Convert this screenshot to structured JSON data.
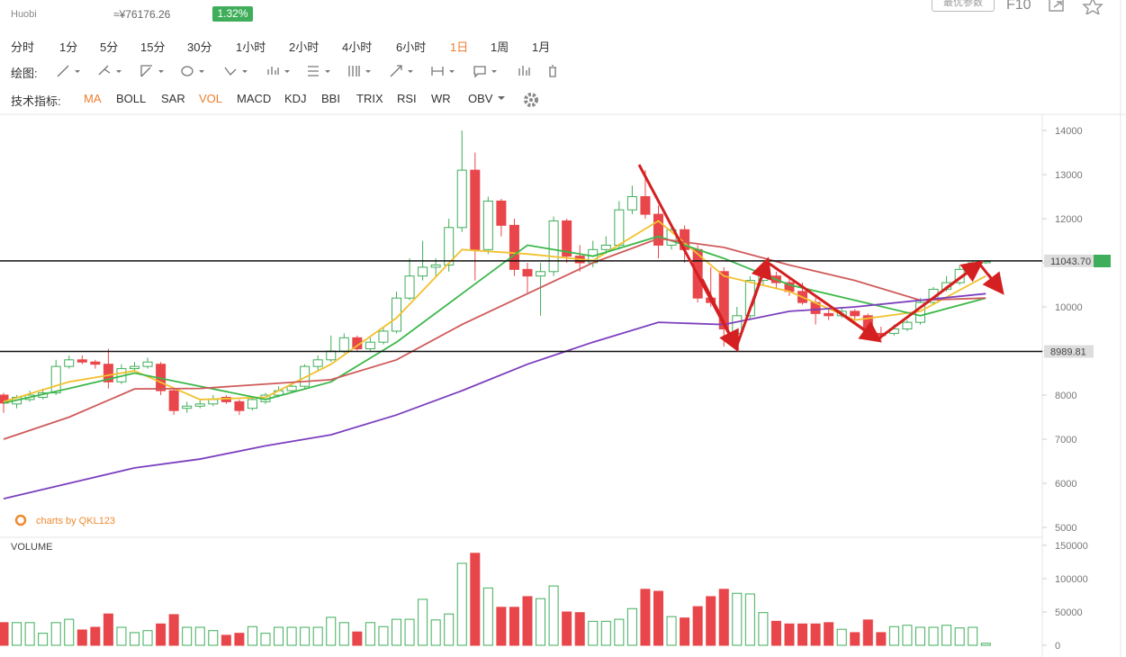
{
  "header": {
    "exchange": "Huobi",
    "cny_price": "≈¥76176.26",
    "change": "1.32%",
    "buttons": [
      "最优参数",
      "F10"
    ]
  },
  "toolbar": {
    "timeframes": [
      "分时",
      "1分",
      "5分",
      "15分",
      "30分",
      "1小时",
      "2小时",
      "4小时",
      "6小时",
      "1日",
      "1周",
      "1月"
    ],
    "active_timeframe": 9,
    "drawing_label": "绘图:",
    "indicators_label": "技术指标:",
    "indicators": [
      "MA",
      "BOLL",
      "SAR",
      "VOL",
      "MACD",
      "KDJ",
      "BBI",
      "TRIX",
      "RSI",
      "WR",
      "OBV"
    ],
    "active_indicators": [
      0,
      3
    ]
  },
  "chart_data": {
    "type": "candlestick",
    "watermark": "charts by QKL123",
    "up_color": "#3fae5a",
    "down_color": "#e8464a",
    "open": [
      8000,
      7800,
      7900,
      7950,
      8050,
      8650,
      8800,
      8750,
      8700,
      8300,
      8600,
      8650,
      8700,
      8100,
      7700,
      7750,
      7800,
      7950,
      7850,
      7700,
      7850,
      8000,
      8100,
      8200,
      8650,
      8800,
      9000,
      9300,
      9050,
      9200,
      9450,
      10200,
      10700,
      10900,
      10950,
      11800,
      13100,
      11300,
      12400,
      11850,
      10850,
      10700,
      10800,
      11950,
      11150,
      11000,
      11300,
      11400,
      12200,
      12500,
      12100,
      11400,
      11750,
      11300,
      10200,
      10800,
      9400,
      9800,
      10600,
      10700,
      10550,
      10350,
      10100,
      9850,
      9800,
      9900,
      9800,
      9400,
      9400,
      9500,
      9650,
      10100,
      10400,
      10550,
      10850,
      11000
    ],
    "high": [
      8050,
      8000,
      8100,
      8150,
      8800,
      8900,
      8900,
      8800,
      9050,
      8700,
      8750,
      8850,
      8750,
      8150,
      7850,
      7900,
      8000,
      8000,
      7900,
      7950,
      8050,
      8200,
      8300,
      8700,
      8900,
      9350,
      9400,
      9350,
      9300,
      9550,
      10350,
      11100,
      11500,
      11100,
      12000,
      14000,
      13500,
      12500,
      12450,
      12000,
      11000,
      11000,
      12050,
      12000,
      11400,
      11500,
      11600,
      12400,
      12750,
      13100,
      12300,
      11900,
      11850,
      11400,
      10900,
      10900,
      10000,
      10700,
      11000,
      10800,
      10650,
      10550,
      10200,
      9950,
      10000,
      9950,
      9850,
      9550,
      9600,
      9700,
      10200,
      10450,
      10700,
      10950,
      11050,
      11050
    ],
    "low": [
      7600,
      7700,
      7850,
      7900,
      8000,
      8600,
      8700,
      8600,
      8150,
      8250,
      8550,
      8600,
      8000,
      7550,
      7600,
      7700,
      7750,
      7800,
      7550,
      7650,
      7800,
      7950,
      8050,
      8150,
      8550,
      8750,
      8950,
      9000,
      9000,
      9150,
      9400,
      10150,
      10600,
      10700,
      10800,
      11700,
      10600,
      11200,
      11600,
      10700,
      10300,
      9800,
      10700,
      11000,
      10800,
      10900,
      11200,
      11300,
      12100,
      12000,
      11100,
      11300,
      11000,
      10100,
      10000,
      9100,
      9300,
      9700,
      10500,
      10400,
      10250,
      10050,
      9600,
      9700,
      9750,
      9700,
      9350,
      9250,
      9350,
      9450,
      9600,
      10050,
      10350,
      10500,
      10800,
      10980
    ],
    "close": [
      7820,
      7950,
      8000,
      8050,
      8650,
      8800,
      8750,
      8700,
      8300,
      8600,
      8650,
      8750,
      8100,
      7650,
      7750,
      7800,
      7900,
      7850,
      7650,
      7900,
      8000,
      8100,
      8200,
      8650,
      8800,
      9000,
      9300,
      9050,
      9200,
      9450,
      10200,
      10700,
      10900,
      10950,
      11800,
      13100,
      11300,
      12400,
      11850,
      10850,
      10700,
      10800,
      11950,
      11150,
      11000,
      11300,
      11400,
      12200,
      12500,
      12100,
      11400,
      11750,
      11300,
      10200,
      10100,
      9500,
      9800,
      10600,
      10700,
      10550,
      10350,
      10100,
      9850,
      9800,
      9900,
      9800,
      9400,
      9350,
      9500,
      9650,
      10100,
      10400,
      10550,
      10850,
      11000,
      11030
    ],
    "volume": [
      34000,
      34000,
      34000,
      18000,
      34000,
      39000,
      23000,
      27000,
      47000,
      27000,
      19000,
      22000,
      32000,
      46000,
      27000,
      27000,
      22000,
      15000,
      18000,
      28000,
      18000,
      27000,
      27000,
      27000,
      27000,
      42000,
      34000,
      20000,
      34000,
      28000,
      39000,
      39000,
      69000,
      38000,
      47000,
      123000,
      138000,
      86000,
      57000,
      57000,
      73000,
      70000,
      89000,
      50000,
      49000,
      36000,
      36000,
      39000,
      55000,
      84000,
      81000,
      43000,
      41000,
      58000,
      73000,
      84000,
      78000,
      77000,
      49000,
      36000,
      32000,
      32000,
      32000,
      34000,
      24000,
      19000,
      38000,
      19000,
      28000,
      30000,
      27000,
      27000,
      30000,
      26000,
      27000,
      3000
    ],
    "ma_x": [
      0,
      5,
      10,
      15,
      20,
      25,
      30,
      35,
      40,
      45,
      50,
      55,
      60,
      65,
      70,
      75
    ],
    "ma_lines": [
      {
        "color": "#f2c12e",
        "values": [
          7850,
          8300,
          8550,
          7900,
          7950,
          8700,
          9750,
          11300,
          11200,
          11050,
          11950,
          10700,
          10350,
          9700,
          9900,
          10700
        ]
      },
      {
        "color": "#3cb84a",
        "values": [
          7820,
          8150,
          8500,
          8200,
          7900,
          8300,
          9200,
          10300,
          11400,
          11150,
          11600,
          11100,
          10500,
          10150,
          9800,
          10200
        ]
      },
      {
        "color": "#cf5a5a",
        "values": [
          7000,
          7500,
          8140,
          8150,
          8250,
          8350,
          8800,
          9600,
          10300,
          11000,
          11550,
          11350,
          10950,
          10600,
          10150,
          10200
        ]
      },
      {
        "color": "#7b3fbf",
        "values": [
          5650,
          6000,
          6350,
          6550,
          6850,
          7100,
          7550,
          8100,
          8700,
          9200,
          9650,
          9600,
          9900,
          10000,
          10150,
          10300
        ]
      }
    ],
    "hlines": [
      {
        "value": 11043.7,
        "label": "11043.70"
      },
      8989.81
    ],
    "ylim": [
      4776,
      14367
    ],
    "yticks": [
      5000,
      6000,
      7000,
      8000,
      9000,
      10000,
      11000,
      12000,
      13000,
      14000
    ],
    "volume_label": "VOLUME",
    "volume_ylim": [
      0,
      162000
    ],
    "volume_yticks": [
      0,
      50000,
      100000,
      150000
    ]
  }
}
